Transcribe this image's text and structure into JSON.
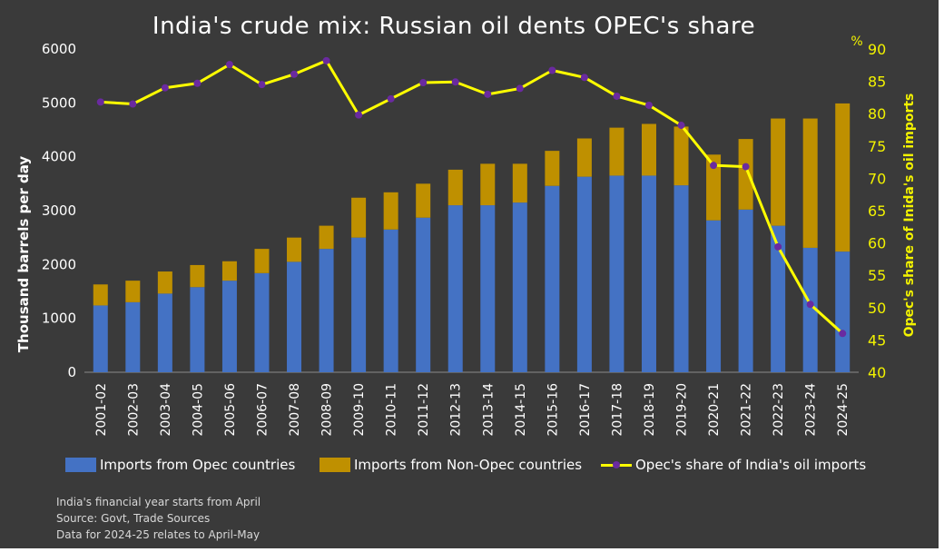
{
  "colors": {
    "opec": "#4472c4",
    "non_opec": "#bf9000",
    "share_line": "#ffff00",
    "share_marker": "#6a2aa0",
    "right_axis": "#f2f200"
  },
  "notes": [
    "India's financial year starts from April",
    "Source: Govt, Trade Sources",
    "Data for 2024-25 relates to April-May"
  ],
  "chart_data": {
    "type": "bar",
    "stacked": true,
    "title": "India's crude mix: Russian oil dents OPEC's share",
    "ylabel": "Thousand barrels per day",
    "ylabel_right": "Opec's share of Inida's oil imports",
    "unit_right": "%",
    "ylim": [
      0,
      6000
    ],
    "ylim_right": [
      40,
      90
    ],
    "yticks": [
      0,
      1000,
      2000,
      3000,
      4000,
      5000,
      6000
    ],
    "yticks_right": [
      40,
      45,
      50,
      55,
      60,
      65,
      70,
      75,
      80,
      85,
      90
    ],
    "legend_position": "bottom",
    "categories": [
      "2001-02",
      "2002-03",
      "2003-04",
      "2004-05",
      "2005-06",
      "2006-07",
      "2007-08",
      "2008-09",
      "2009-10",
      "2010-11",
      "2011-12",
      "2012-13",
      "2013-14",
      "2014-15",
      "2015-16",
      "2016-17",
      "2017-18",
      "2018-19",
      "2019-20",
      "2020-21",
      "2021-22",
      "2022-23",
      "2023-24",
      "2024-25"
    ],
    "series": [
      {
        "name": "Imports from Opec countries",
        "values": [
          1240,
          1300,
          1460,
          1580,
          1700,
          1840,
          2050,
          2290,
          2500,
          2650,
          2870,
          3100,
          3100,
          3150,
          3460,
          3630,
          3650,
          3650,
          3470,
          2820,
          3020,
          2720,
          2310,
          2240
        ]
      },
      {
        "name": "Imports from Non-Opec countries",
        "values": [
          390,
          400,
          410,
          410,
          360,
          450,
          450,
          430,
          740,
          690,
          630,
          660,
          770,
          720,
          650,
          710,
          890,
          960,
          1090,
          1220,
          1310,
          1990,
          2400,
          2750
        ]
      },
      {
        "name": "Opec's share of India's oil imports",
        "axis": "right",
        "type": "line",
        "values": [
          81.8,
          81.5,
          84.0,
          84.7,
          87.6,
          84.5,
          86.1,
          88.2,
          79.8,
          82.3,
          84.8,
          84.9,
          83.0,
          83.9,
          86.7,
          85.6,
          82.7,
          81.3,
          78.2,
          72.0,
          71.8,
          59.4,
          50.5,
          46.0
        ]
      }
    ]
  }
}
